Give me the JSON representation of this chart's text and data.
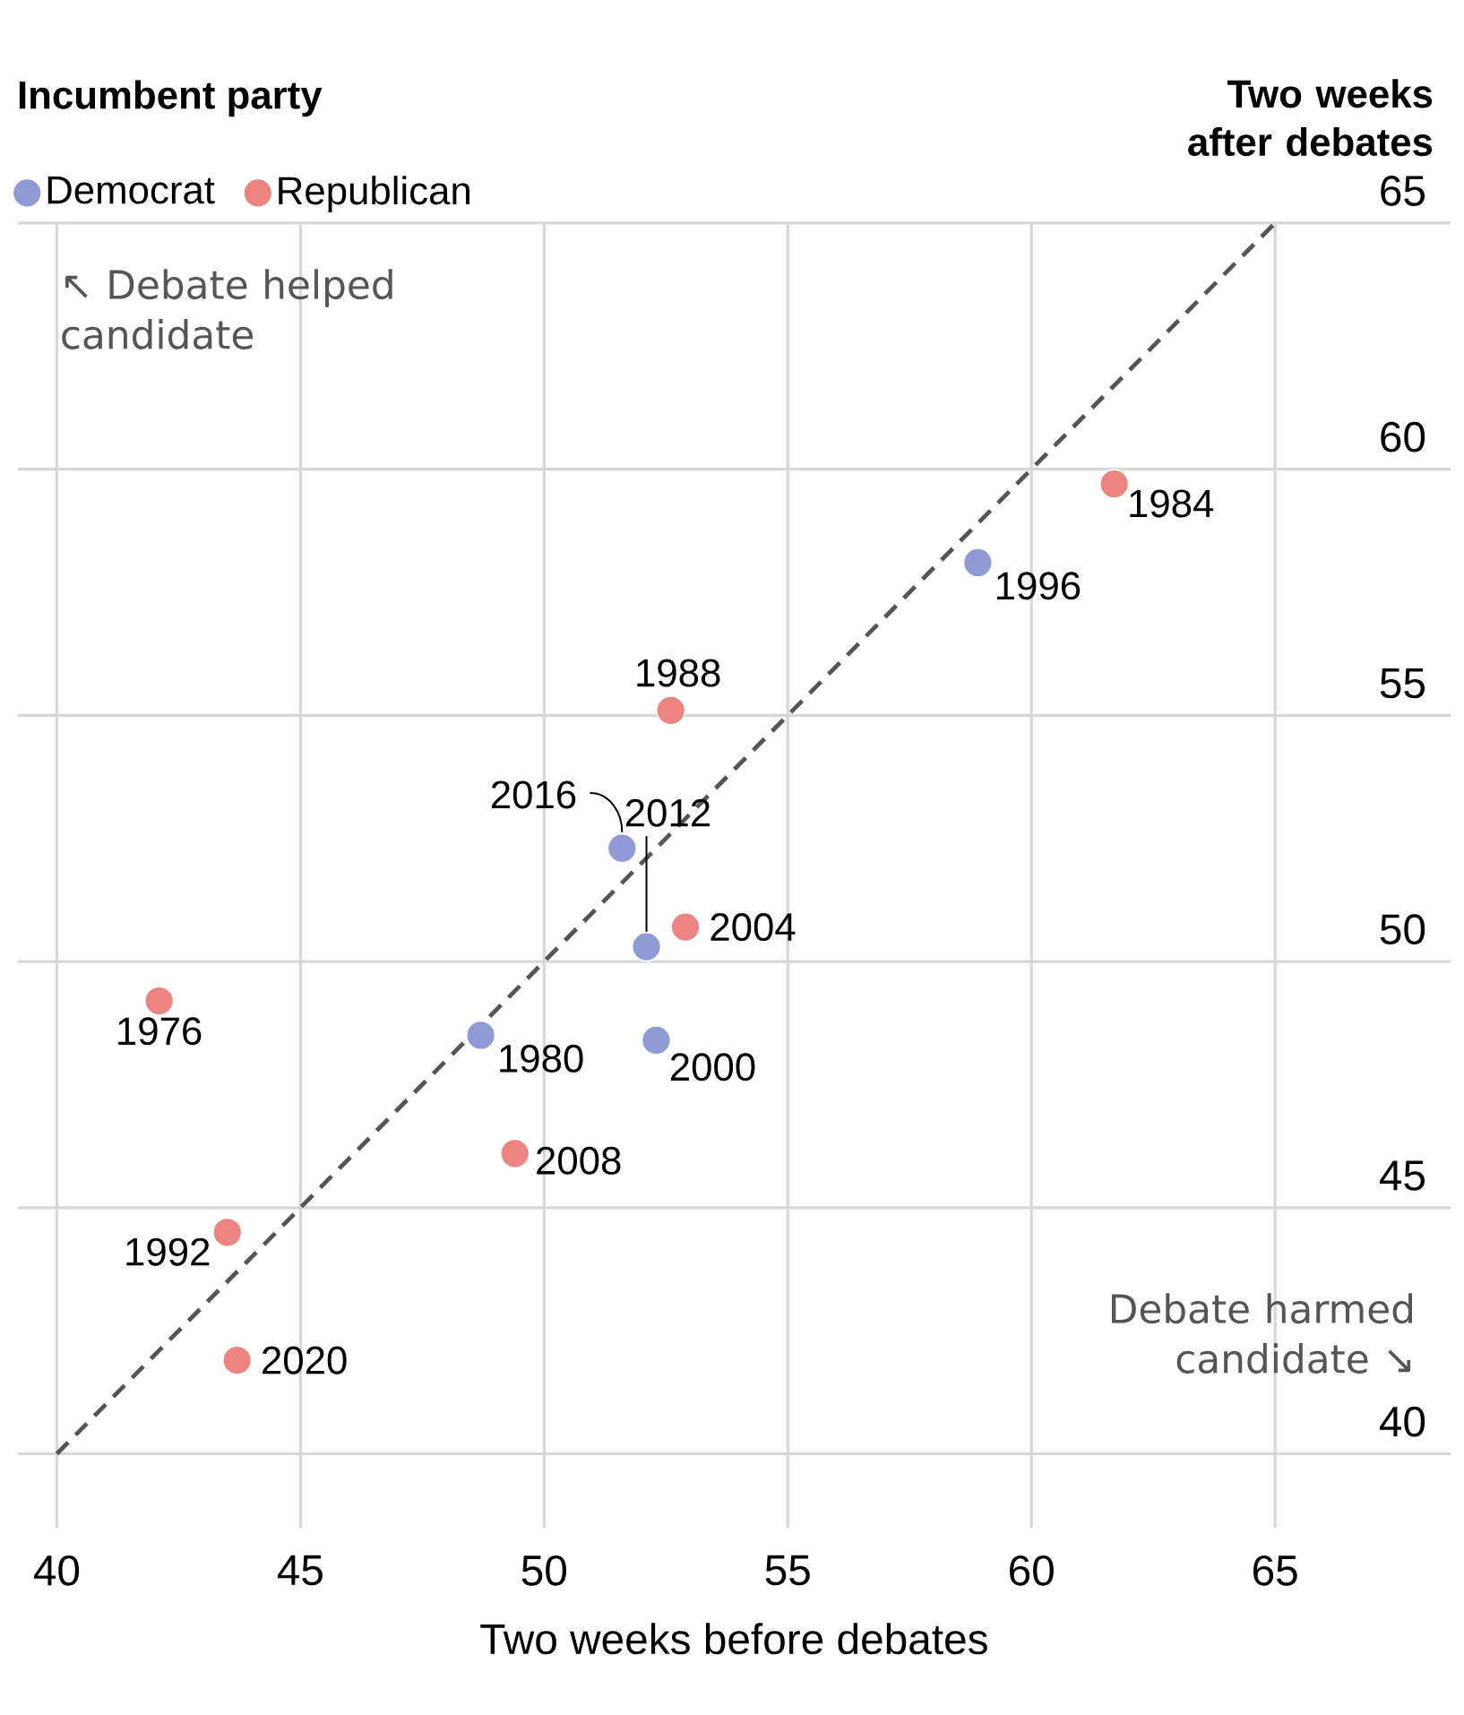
{
  "chart_data": {
    "type": "scatter",
    "legend_title": "Incumbent party",
    "xlabel": "Two weeks before debates",
    "ylabel": "Two weeks after debates",
    "xlim": [
      39.2,
      68.6
    ],
    "ylim": [
      38.5,
      65
    ],
    "xticks": [
      40,
      45,
      50,
      55,
      60,
      65
    ],
    "yticks": [
      40,
      45,
      50,
      55,
      60,
      65
    ],
    "grid": true,
    "legend": "top left",
    "series": [
      {
        "name": "Democrat",
        "color": "#8f9bd4",
        "x": [
          48.7,
          58.9,
          52.3,
          52.1,
          51.6
        ],
        "values": [
          48.5,
          58.1,
          48.4,
          50.3,
          52.3
        ]
      },
      {
        "name": "Republican",
        "color": "#ec8582",
        "x": [
          42.1,
          61.7,
          52.6,
          43.5,
          52.9,
          49.4,
          43.7
        ],
        "values": [
          49.2,
          59.7,
          55.1,
          44.5,
          50.7,
          46.1,
          41.9
        ]
      },
      {
        "type": "line",
        "color": "#555555",
        "line_style": "dashed",
        "marker": "none",
        "x": [
          40,
          65
        ],
        "values": [
          40,
          65
        ]
      }
    ],
    "annotations": [
      "↖ Debate helped candidate",
      "Debate harmed candidate ↘",
      {
        "text": "1976",
        "x": 42.1,
        "y": 49.2
      },
      {
        "text": "1980",
        "x": 48.7,
        "y": 48.5
      },
      {
        "text": "1984",
        "x": 61.7,
        "y": 59.7
      },
      {
        "text": "1988",
        "x": 52.6,
        "y": 55.1
      },
      {
        "text": "1992",
        "x": 43.5,
        "y": 44.5
      },
      {
        "text": "1996",
        "x": 58.9,
        "y": 58.1
      },
      {
        "text": "2000",
        "x": 52.3,
        "y": 48.4
      },
      {
        "text": "2004",
        "x": 52.9,
        "y": 50.7
      },
      {
        "text": "2008",
        "x": 49.4,
        "y": 46.1
      },
      {
        "text": "2012",
        "x": 52.1,
        "y": 50.3
      },
      {
        "text": "2016",
        "x": 51.6,
        "y": 52.3
      },
      {
        "text": "2020",
        "x": 43.7,
        "y": 41.9
      }
    ]
  }
}
